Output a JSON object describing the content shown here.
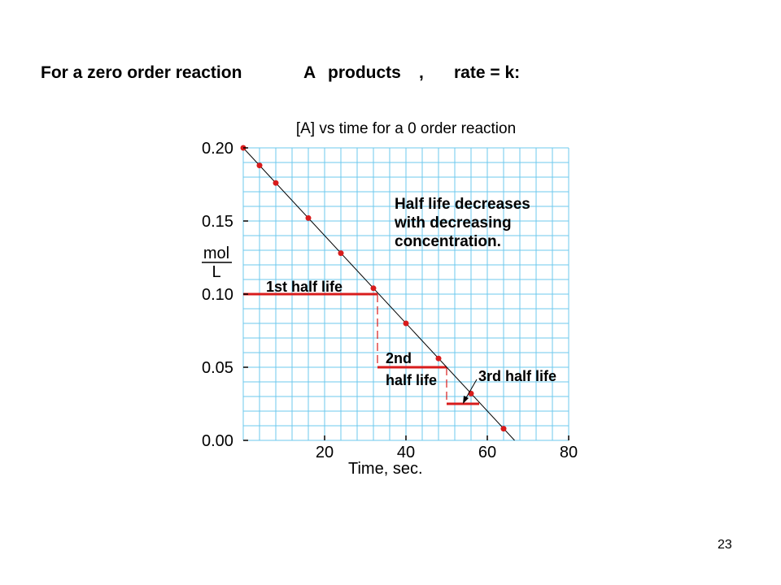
{
  "slide": {
    "heading": {
      "part1": "For a zero order reaction",
      "part2": "A",
      "part3": "products",
      "part4": ",",
      "part5": "rate = k:"
    },
    "page_number": "23"
  },
  "colors": {
    "grid": "#6ec8ee",
    "point": "#d81c1c",
    "half_life": "#d81c1c",
    "line": "#000000"
  },
  "chart_data": {
    "type": "scatter",
    "title": "[A] vs time for a 0  order reaction",
    "xlabel": "Time, sec.",
    "ylabel_numerator": "mol",
    "ylabel_denominator": "L",
    "xlim": [
      0,
      80
    ],
    "ylim": [
      0,
      0.2
    ],
    "x_ticks": [
      20,
      40,
      60,
      80
    ],
    "x_tick_labels": [
      "20",
      "40",
      "60",
      "80"
    ],
    "y_ticks": [
      0.0,
      0.05,
      0.1,
      0.15,
      0.2
    ],
    "y_tick_labels": [
      "0.00",
      "0.05",
      "0.10",
      "0.15",
      "0.20"
    ],
    "grid": true,
    "series": [
      {
        "x": [
          0,
          4,
          8,
          16,
          24,
          32,
          40,
          48,
          56,
          64
        ],
        "y": [
          0.2,
          0.188,
          0.176,
          0.152,
          0.128,
          0.104,
          0.08,
          0.056,
          0.032,
          0.008
        ]
      }
    ],
    "fit_line": {
      "x": [
        0,
        66.7
      ],
      "y": [
        0.2,
        0.0
      ]
    },
    "half_lives": [
      {
        "label": "1st half life",
        "x_start": 0,
        "x_end": 33,
        "y": 0.1
      },
      {
        "label_line1": "2nd",
        "label_line2": "half life",
        "x_start": 33,
        "x_end": 50,
        "y": 0.05
      },
      {
        "label": "3rd half life",
        "x_start": 50,
        "x_end": 58,
        "y": 0.025
      }
    ],
    "annotation": {
      "line1": "Half life decreases",
      "line2": "with decreasing",
      "line3": "concentration."
    }
  }
}
